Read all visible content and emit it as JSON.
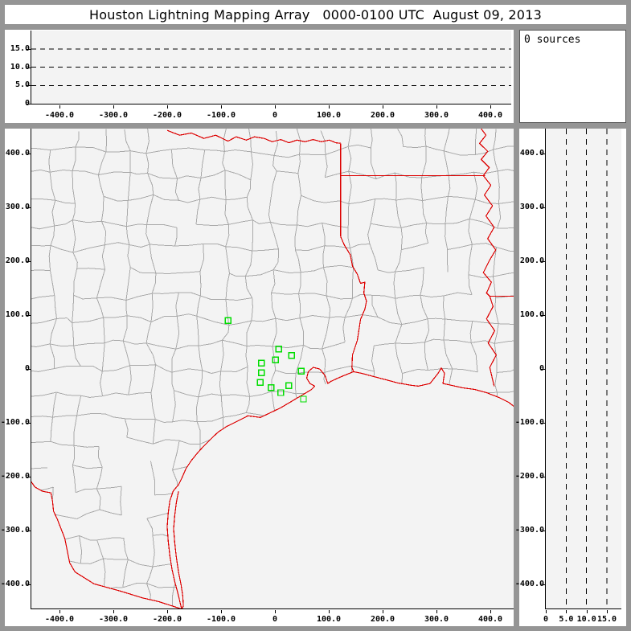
{
  "window": {
    "title": "Houston Lightning Mapping Array   0000-0100 UTC  August 09, 2013"
  },
  "sources_panel": {
    "label": "0 sources"
  },
  "colors": {
    "chrome": "#959595",
    "plot_bg": "#f3f3f3",
    "axis": "#000000",
    "grid_dash": "#000000",
    "county_border": "#a9a9a9",
    "state_border": "#dd0000",
    "station": "#00dd00"
  },
  "chart_data": [
    {
      "id": "altitude-vs-east-west",
      "type": "scatter",
      "note": "upper strip: altitude (km) vs east-west distance (km); empty, 0 sources",
      "x_range": [
        -452,
        448
      ],
      "y_range": [
        0,
        20
      ],
      "x_ticks": {
        "values": [
          -400,
          -300,
          -200,
          -100,
          0,
          100,
          200,
          300,
          400
        ],
        "labels": [
          "-400.0",
          "-300.0",
          "-200.0",
          "-100.0",
          "0",
          "100.0",
          "200.0",
          "300.0",
          "400.0"
        ]
      },
      "y_ticks": {
        "values": [
          0,
          5,
          10,
          15
        ],
        "labels": [
          "0",
          "5.0",
          "10.0",
          "15.0"
        ]
      },
      "y_grid": [
        5,
        10,
        15
      ],
      "points": []
    },
    {
      "id": "plan-view-map",
      "type": "scatter",
      "note": "plan view map, distances in km from HLMA network center; green squares = LMA stations; no source points",
      "x_range": [
        -452,
        448
      ],
      "y_range": [
        -450,
        443
      ],
      "x_ticks": {
        "values": [
          -400,
          -300,
          -200,
          -100,
          0,
          100,
          200,
          300,
          400
        ],
        "labels": [
          "-400.0",
          "-300.0",
          "-200.0",
          "-100.0",
          "0",
          "100.0",
          "200.0",
          "300.0",
          "400.0"
        ]
      },
      "y_ticks": {
        "values": [
          400,
          300,
          200,
          100,
          0,
          -100,
          -200,
          -300,
          -400
        ],
        "labels": [
          "400.0",
          "300.0",
          "200.0",
          "100.0",
          "0",
          "-100.0",
          "-200.0",
          "-300.0",
          "-400.0"
        ]
      },
      "points": [],
      "stations": [
        [
          -87,
          90
        ],
        [
          7,
          37
        ],
        [
          1,
          17
        ],
        [
          31,
          25
        ],
        [
          -25,
          11
        ],
        [
          -25,
          -7
        ],
        [
          49,
          -4
        ],
        [
          -27,
          -25
        ],
        [
          -7,
          -35
        ],
        [
          26,
          -31
        ],
        [
          11,
          -44
        ],
        [
          53,
          -56
        ]
      ],
      "county_grid": {
        "cols": 21,
        "rows": 21,
        "seed": 20130809,
        "jitter": 9,
        "skip_north": 0.14,
        "skip_south": 0.32
      },
      "borders": {
        "red-river-tx-ok-border": [
          [
            -200,
            443
          ],
          [
            -177,
            434
          ],
          [
            -155,
            438
          ],
          [
            -132,
            428
          ],
          [
            -110,
            434
          ],
          [
            -87,
            423
          ],
          [
            -72,
            431
          ],
          [
            -53,
            425
          ],
          [
            -38,
            431
          ],
          [
            -20,
            428
          ],
          [
            -5,
            422
          ],
          [
            11,
            426
          ],
          [
            26,
            420
          ],
          [
            41,
            425
          ],
          [
            56,
            422
          ],
          [
            71,
            426
          ],
          [
            86,
            422
          ],
          [
            101,
            425
          ],
          [
            113,
            420
          ],
          [
            122,
            419
          ]
        ],
        "tx-ar-border": [
          [
            122,
            419
          ],
          [
            122,
            246
          ]
        ],
        "ok-ar-border": [
          [
            122,
            359
          ],
          [
            390,
            359
          ]
        ],
        "mississippi-river-border": [
          [
            383,
            446
          ],
          [
            392,
            434
          ],
          [
            380,
            419
          ],
          [
            395,
            404
          ],
          [
            383,
            389
          ],
          [
            398,
            374
          ],
          [
            387,
            359
          ],
          [
            401,
            341
          ],
          [
            389,
            323
          ],
          [
            404,
            303
          ],
          [
            392,
            284
          ],
          [
            407,
            263
          ],
          [
            395,
            242
          ],
          [
            410,
            221
          ],
          [
            398,
            201
          ],
          [
            387,
            179
          ],
          [
            402,
            161
          ],
          [
            393,
            141
          ],
          [
            399,
            135
          ],
          [
            405,
            116
          ],
          [
            393,
            93
          ],
          [
            408,
            71
          ],
          [
            396,
            48
          ],
          [
            411,
            26
          ],
          [
            399,
            3
          ],
          [
            407,
            -32
          ]
        ],
        "ar-la-border": [
          [
            399,
            135
          ],
          [
            447,
            135
          ]
        ],
        "tx-la-border": [
          [
            122,
            246
          ],
          [
            129,
            230
          ],
          [
            140,
            212
          ],
          [
            144,
            191
          ],
          [
            153,
            176
          ],
          [
            159,
            159
          ],
          [
            167,
            161
          ],
          [
            165,
            141
          ],
          [
            170,
            126
          ],
          [
            167,
            111
          ],
          [
            159,
            92
          ],
          [
            156,
            72
          ],
          [
            153,
            53
          ],
          [
            144,
            26
          ],
          [
            143,
            3
          ],
          [
            146,
            -5
          ]
        ],
        "gulf-coast-east": [
          [
            146,
            -5
          ],
          [
            161,
            -8
          ],
          [
            183,
            -14
          ],
          [
            206,
            -20
          ],
          [
            228,
            -26
          ],
          [
            251,
            -30
          ],
          [
            266,
            -32
          ],
          [
            288,
            -27
          ],
          [
            303,
            -8
          ],
          [
            309,
            2
          ],
          [
            315,
            -8
          ],
          [
            312,
            -27
          ],
          [
            326,
            -30
          ],
          [
            348,
            -35
          ],
          [
            371,
            -38
          ],
          [
            393,
            -44
          ],
          [
            416,
            -53
          ],
          [
            434,
            -62
          ],
          [
            447,
            -72
          ]
        ],
        "gulf-coast-west": [
          [
            146,
            -5
          ],
          [
            131,
            -11
          ],
          [
            117,
            -17
          ],
          [
            104,
            -23
          ],
          [
            98,
            -27
          ],
          [
            93,
            -12
          ],
          [
            83,
            0
          ],
          [
            71,
            3
          ],
          [
            62,
            -5
          ],
          [
            59,
            -17
          ],
          [
            65,
            -27
          ],
          [
            74,
            -32
          ],
          [
            68,
            -38
          ],
          [
            48,
            -50
          ],
          [
            33,
            -59
          ],
          [
            11,
            -72
          ],
          [
            -12,
            -83
          ],
          [
            -27,
            -90
          ],
          [
            -50,
            -87
          ],
          [
            -72,
            -98
          ],
          [
            -90,
            -107
          ],
          [
            -105,
            -117
          ],
          [
            -117,
            -128
          ],
          [
            -132,
            -143
          ],
          [
            -143,
            -155
          ],
          [
            -155,
            -170
          ],
          [
            -165,
            -185
          ],
          [
            -173,
            -203
          ],
          [
            -179,
            -215
          ],
          [
            -185,
            -222
          ],
          [
            -189,
            -227
          ],
          [
            -195,
            -245
          ],
          [
            -198,
            -267
          ],
          [
            -200,
            -293
          ],
          [
            -198,
            -320
          ],
          [
            -195,
            -347
          ],
          [
            -191,
            -372
          ],
          [
            -186,
            -395
          ],
          [
            -180,
            -417
          ],
          [
            -176,
            -434
          ],
          [
            -173,
            -446
          ]
        ],
        "padre-island-barrier": [
          [
            -179,
            -227
          ],
          [
            -183,
            -248
          ],
          [
            -186,
            -272
          ],
          [
            -188,
            -297
          ],
          [
            -186,
            -323
          ],
          [
            -183,
            -350
          ],
          [
            -179,
            -377
          ],
          [
            -174,
            -402
          ],
          [
            -171,
            -422
          ],
          [
            -170,
            -440
          ],
          [
            -173,
            -446
          ]
        ],
        "rio-grande-border": [
          [
            -454,
            -207
          ],
          [
            -446,
            -219
          ],
          [
            -432,
            -227
          ],
          [
            -416,
            -230
          ],
          [
            -413,
            -245
          ],
          [
            -411,
            -264
          ],
          [
            -404,
            -279
          ],
          [
            -390,
            -315
          ],
          [
            -381,
            -360
          ],
          [
            -371,
            -377
          ],
          [
            -336,
            -399
          ],
          [
            -285,
            -413
          ],
          [
            -246,
            -425
          ],
          [
            -216,
            -432
          ],
          [
            -191,
            -440
          ],
          [
            -173,
            -446
          ]
        ]
      },
      "land_clip": [
        [
          -454,
          447
        ],
        [
          448,
          447
        ],
        [
          448,
          -72
        ],
        [
          434,
          -62
        ],
        [
          416,
          -53
        ],
        [
          393,
          -44
        ],
        [
          371,
          -38
        ],
        [
          348,
          -35
        ],
        [
          326,
          -30
        ],
        [
          312,
          -27
        ],
        [
          315,
          -8
        ],
        [
          309,
          2
        ],
        [
          303,
          -8
        ],
        [
          288,
          -27
        ],
        [
          266,
          -32
        ],
        [
          251,
          -30
        ],
        [
          228,
          -26
        ],
        [
          206,
          -20
        ],
        [
          183,
          -14
        ],
        [
          161,
          -8
        ],
        [
          146,
          -5
        ],
        [
          131,
          -11
        ],
        [
          117,
          -17
        ],
        [
          104,
          -23
        ],
        [
          98,
          -27
        ],
        [
          68,
          -38
        ],
        [
          48,
          -50
        ],
        [
          33,
          -59
        ],
        [
          11,
          -72
        ],
        [
          -12,
          -83
        ],
        [
          -27,
          -90
        ],
        [
          -50,
          -87
        ],
        [
          -72,
          -98
        ],
        [
          -90,
          -107
        ],
        [
          -105,
          -117
        ],
        [
          -117,
          -128
        ],
        [
          -132,
          -143
        ],
        [
          -143,
          -155
        ],
        [
          -155,
          -170
        ],
        [
          -165,
          -185
        ],
        [
          -173,
          -203
        ],
        [
          -179,
          -215
        ],
        [
          -189,
          -227
        ],
        [
          -195,
          -245
        ],
        [
          -198,
          -267
        ],
        [
          -200,
          -293
        ],
        [
          -198,
          -320
        ],
        [
          -195,
          -347
        ],
        [
          -191,
          -372
        ],
        [
          -186,
          -395
        ],
        [
          -180,
          -417
        ],
        [
          -173,
          -446
        ],
        [
          -191,
          -440
        ],
        [
          -216,
          -432
        ],
        [
          -246,
          -425
        ],
        [
          -285,
          -413
        ],
        [
          -336,
          -399
        ],
        [
          -371,
          -377
        ],
        [
          -381,
          -360
        ],
        [
          -390,
          -315
        ],
        [
          -404,
          -279
        ],
        [
          -411,
          -264
        ],
        [
          -413,
          -245
        ],
        [
          -416,
          -230
        ],
        [
          -432,
          -227
        ],
        [
          -446,
          -219
        ],
        [
          -454,
          -207
        ]
      ]
    },
    {
      "id": "altitude-vs-north-south",
      "type": "scatter",
      "note": "right strip: north-south distance (km) vs altitude (km); empty, 0 sources",
      "x_range": [
        0,
        18.5
      ],
      "y_range": [
        -450,
        443
      ],
      "x_ticks": {
        "values": [
          0,
          5,
          10,
          15
        ],
        "labels": [
          "0",
          "5.0",
          "10.0",
          "15.0"
        ]
      },
      "y_ticks": {
        "values": [
          400,
          300,
          200,
          100,
          0,
          -100,
          -200,
          -300,
          -400
        ],
        "labels": [
          "400.0",
          "300.0",
          "200.0",
          "100.0",
          "0",
          "-100.0",
          "-200.0",
          "-300.0",
          "-400.0"
        ]
      },
      "x_grid": [
        5,
        10,
        15
      ],
      "points": []
    }
  ]
}
